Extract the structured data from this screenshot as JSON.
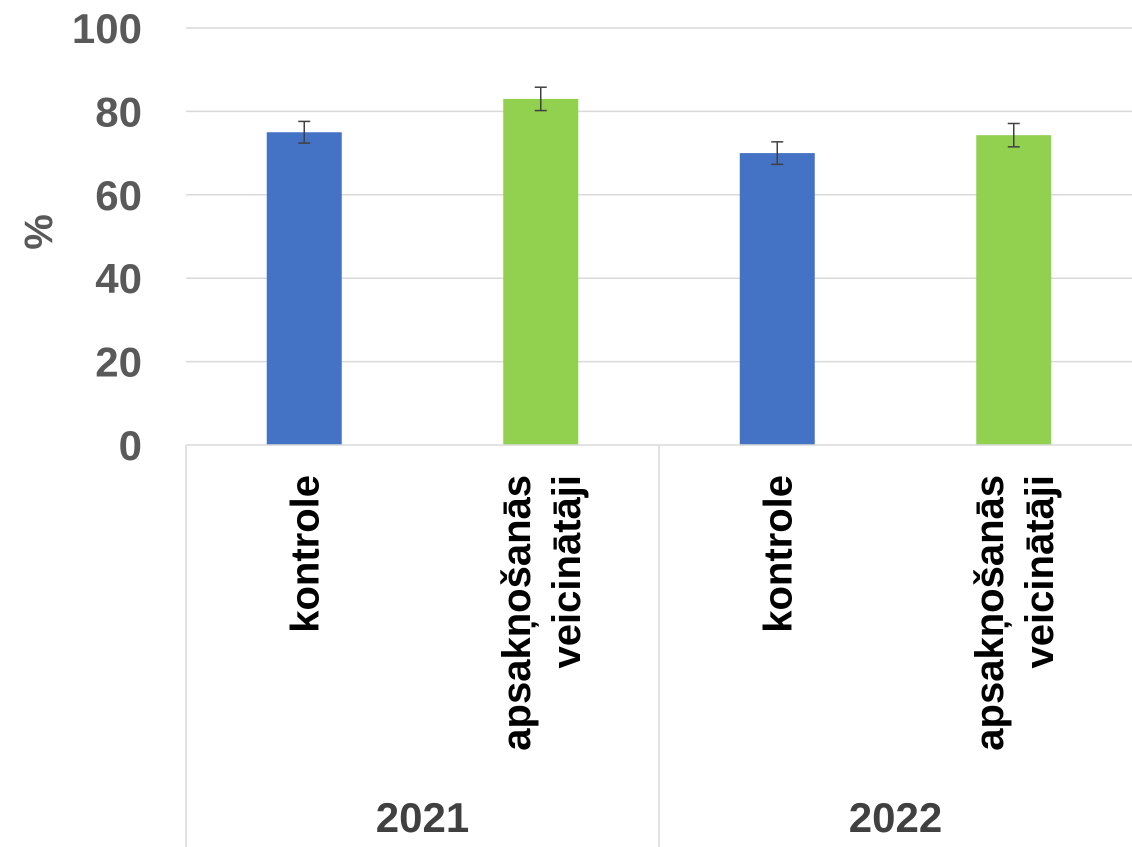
{
  "chart_data": {
    "type": "bar",
    "ylabel": "%",
    "ylim": [
      0,
      100
    ],
    "yticks": [
      0,
      20,
      40,
      60,
      80,
      100
    ],
    "grid": true,
    "groups": [
      {
        "label": "2021",
        "bars": [
          {
            "category": [
              "kontrole"
            ],
            "value": 75,
            "error": 2.6,
            "color": "#4472C4"
          },
          {
            "category": [
              "apsakņošanās",
              "veicinātāji"
            ],
            "value": 83,
            "error": 2.8,
            "color": "#92D050"
          }
        ]
      },
      {
        "label": "2022",
        "bars": [
          {
            "category": [
              "kontrole"
            ],
            "value": 70,
            "error": 2.7,
            "color": "#4472C4"
          },
          {
            "category": [
              "apsakņošanās",
              "veicinātāji"
            ],
            "value": 74.3,
            "error": 2.8,
            "color": "#92D050"
          }
        ]
      }
    ]
  }
}
